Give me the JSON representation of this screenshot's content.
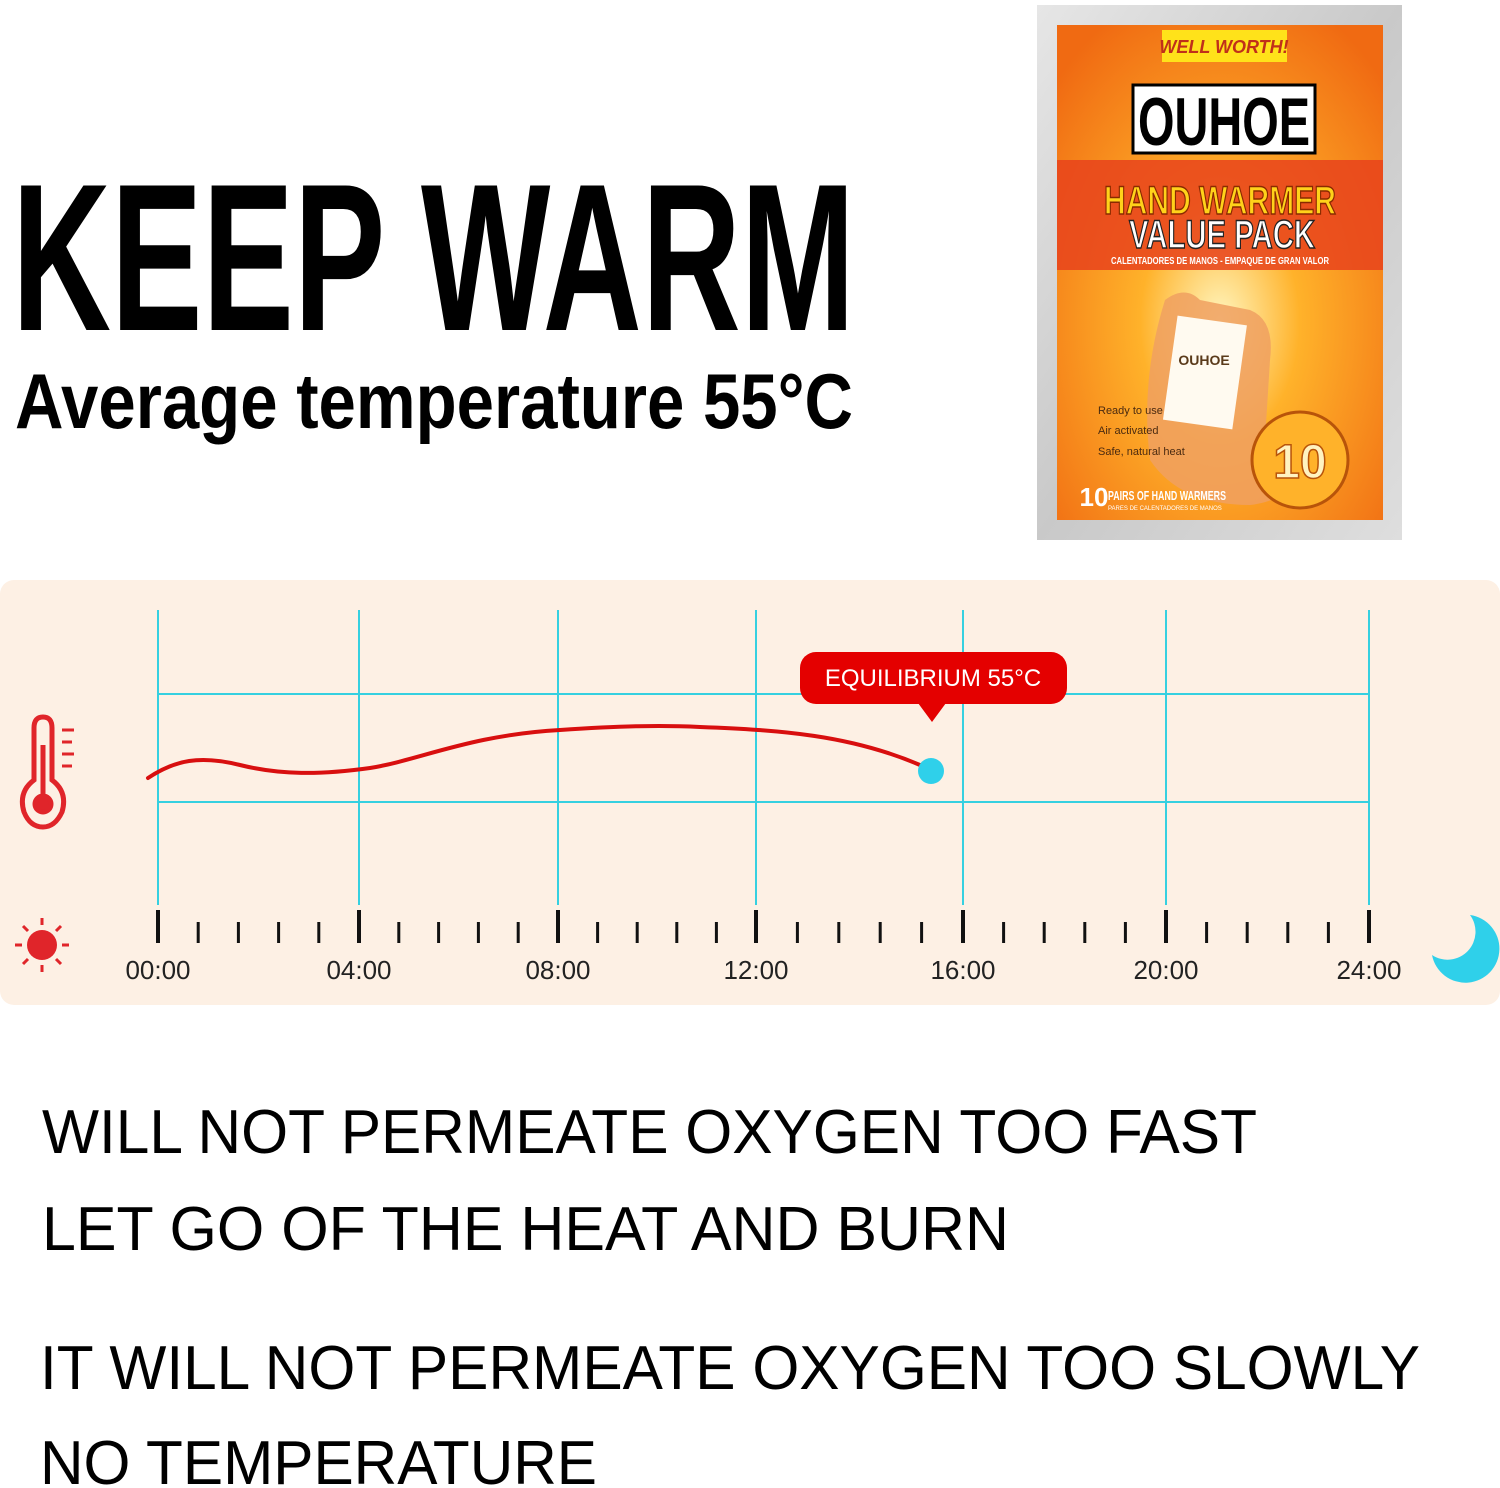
{
  "header": {
    "title": "KEEP WARM",
    "subtitle": "Average temperature 55°C"
  },
  "package": {
    "tag": "WELL WORTH!",
    "brand": "OUHOE",
    "product": "HAND WARMER",
    "product_line": "VALUE PACK",
    "spanish": "CALENTADORES DE MANOS - EMPAQUE DE GRAN VALOR",
    "pad_brand": "OUHOE",
    "features": [
      "Ready to use",
      "Air activated",
      "Safe, natural heat"
    ],
    "count": "10",
    "count_label": "PAIRS OF HAND WARMERS",
    "count_label_es": "PARES DE CALENTADORES DE MANOS",
    "badge": "10"
  },
  "timeline": {
    "callout": "EQUILIBRIUM 55°C",
    "times": [
      "00:00",
      "04:00",
      "08:00",
      "12:00",
      "16:00",
      "20:00",
      "24:00"
    ]
  },
  "notes": [
    "WILL NOT PERMEATE OXYGEN TOO FAST",
    "LET GO OF THE HEAT AND BURN",
    "IT WILL NOT PERMEATE OXYGEN TOO SLOWLY",
    "NO TEMPERATURE"
  ]
}
